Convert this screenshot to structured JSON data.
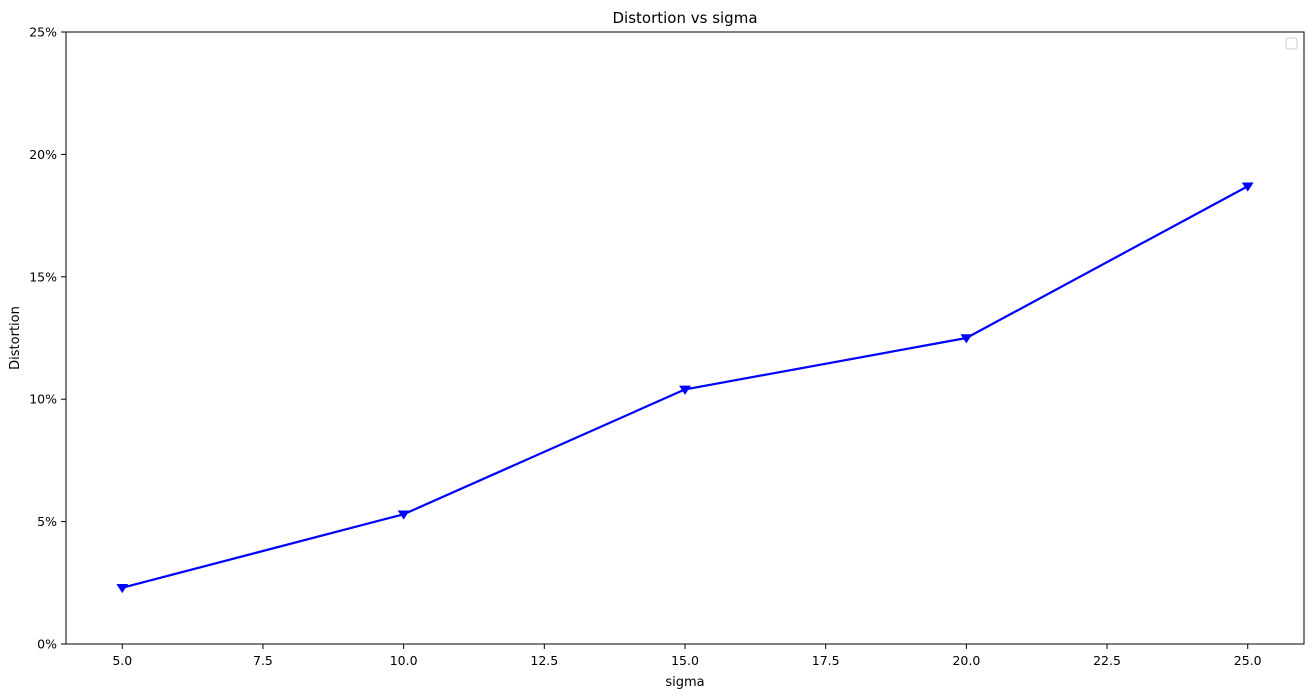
{
  "chart_data": {
    "type": "line",
    "title": "Distortion vs sigma",
    "xlabel": "sigma",
    "ylabel": "Distortion",
    "xlim": [
      4.0,
      26.0
    ],
    "ylim": [
      0,
      25
    ],
    "x_ticks": [
      5.0,
      7.5,
      10.0,
      12.5,
      15.0,
      17.5,
      20.0,
      22.5,
      25.0
    ],
    "x_tick_labels": [
      "5.0",
      "7.5",
      "10.0",
      "12.5",
      "15.0",
      "17.5",
      "20.0",
      "22.5",
      "25.0"
    ],
    "y_ticks": [
      0,
      5,
      10,
      15,
      20,
      25
    ],
    "y_tick_labels": [
      "0%",
      "5%",
      "10%",
      "15%",
      "20%",
      "25%"
    ],
    "grid": false,
    "legend": {
      "position": "top-right",
      "entries": []
    },
    "series": [
      {
        "x": [
          5,
          10,
          15,
          20,
          25
        ],
        "values": [
          2.3,
          5.3,
          10.4,
          12.5,
          18.7
        ],
        "color": "#0000ff",
        "marker": "triangle-down"
      }
    ]
  }
}
